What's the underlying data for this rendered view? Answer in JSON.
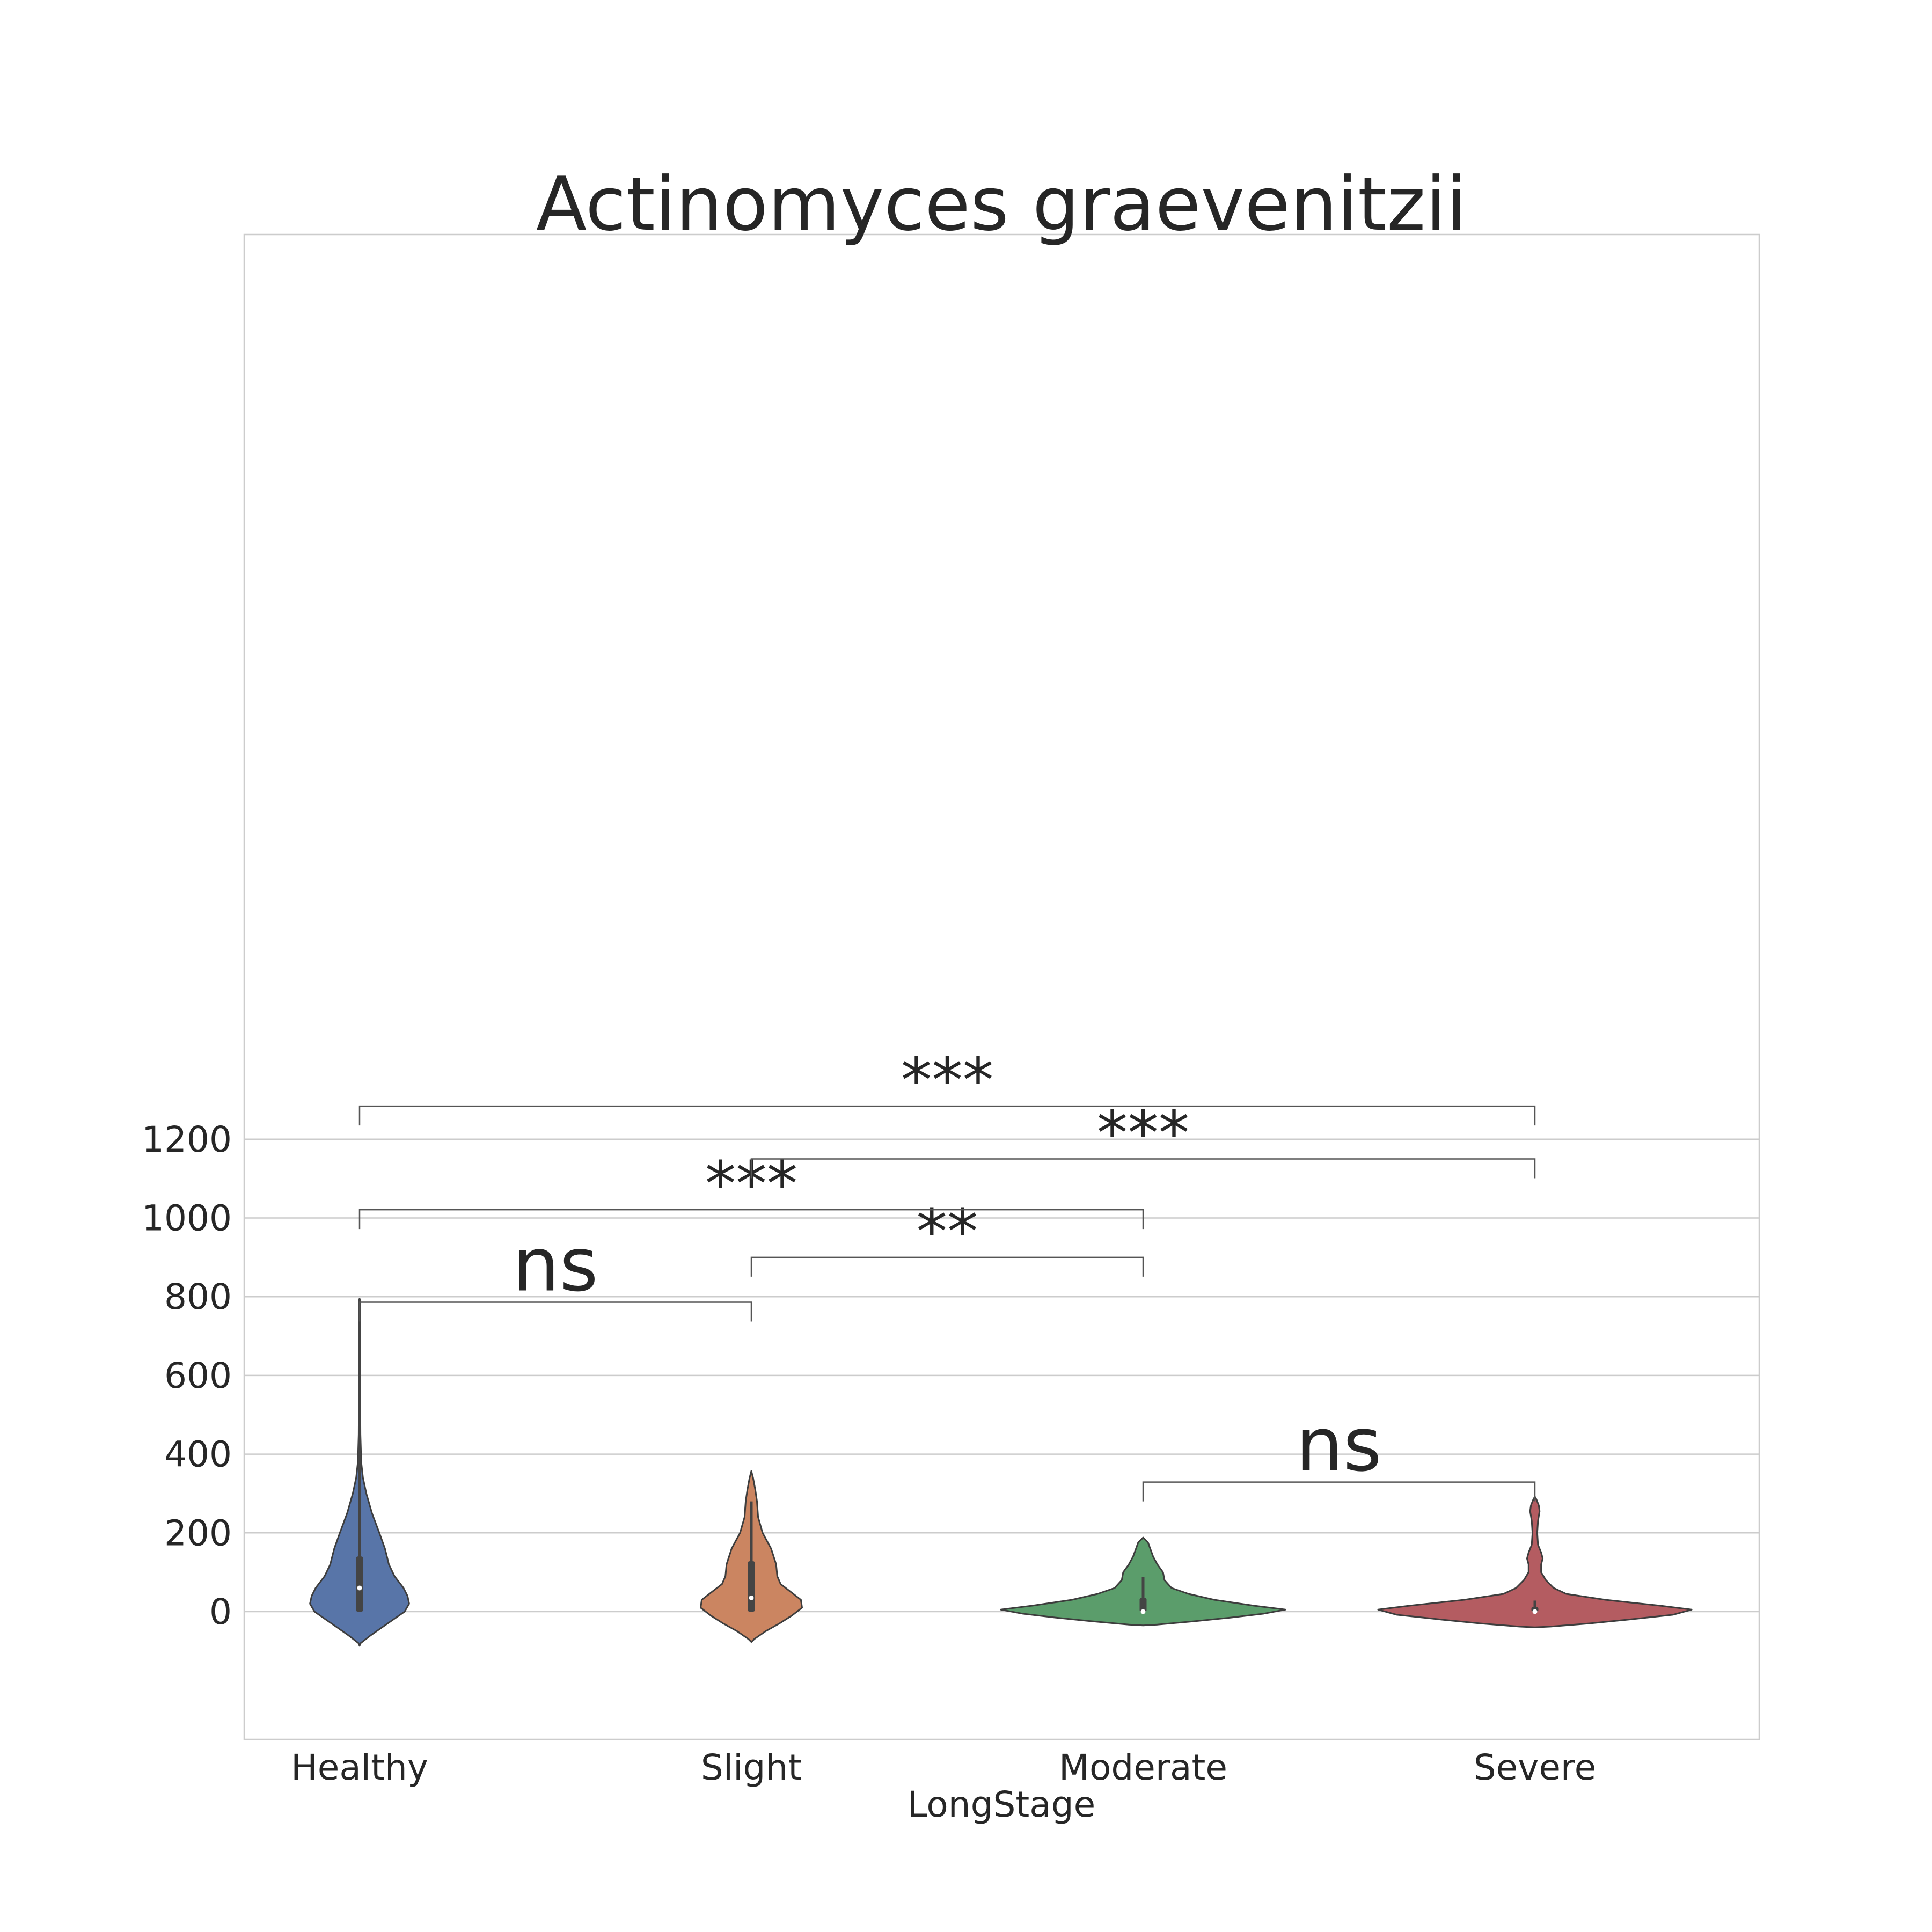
{
  "chart_data": {
    "type": "violin",
    "title": "Actinomyces graevenitzii",
    "xlabel": "LongStage",
    "ylabel": "",
    "categories": [
      "Healthy",
      "Slight",
      "Moderate",
      "Severe"
    ],
    "ylim": [
      -130,
      1400
    ],
    "yticks": [
      0,
      200,
      400,
      600,
      800,
      1000,
      1200
    ],
    "grid": true,
    "colors": [
      "#5875a8",
      "#cb8561",
      "#5b9d6b",
      "#b45c61"
    ],
    "violins": [
      {
        "category": "Healthy",
        "min": 0,
        "q1": 0,
        "median": 60,
        "q3": 140,
        "max": 795,
        "kde_min": -87,
        "kde_max": 795,
        "profile": [
          [
            -87,
            0.0
          ],
          [
            -80,
            0.02
          ],
          [
            -60,
            0.2
          ],
          [
            -40,
            0.4
          ],
          [
            -20,
            0.6
          ],
          [
            0,
            0.8
          ],
          [
            20,
            0.88
          ],
          [
            40,
            0.85
          ],
          [
            60,
            0.78
          ],
          [
            90,
            0.62
          ],
          [
            120,
            0.52
          ],
          [
            160,
            0.45
          ],
          [
            200,
            0.35
          ],
          [
            250,
            0.22
          ],
          [
            300,
            0.12
          ],
          [
            340,
            0.06
          ],
          [
            380,
            0.03
          ],
          [
            450,
            0.015
          ],
          [
            600,
            0.01
          ],
          [
            795,
            0.0
          ]
        ]
      },
      {
        "category": "Slight",
        "min": 0,
        "q1": 0,
        "median": 35,
        "q3": 128,
        "max": 280,
        "kde_min": -77,
        "kde_max": 357,
        "profile": [
          [
            -77,
            0.0
          ],
          [
            -70,
            0.05
          ],
          [
            -50,
            0.25
          ],
          [
            -30,
            0.5
          ],
          [
            -10,
            0.72
          ],
          [
            10,
            0.9
          ],
          [
            30,
            0.88
          ],
          [
            50,
            0.7
          ],
          [
            70,
            0.52
          ],
          [
            90,
            0.46
          ],
          [
            120,
            0.44
          ],
          [
            160,
            0.35
          ],
          [
            200,
            0.2
          ],
          [
            240,
            0.12
          ],
          [
            280,
            0.1
          ],
          [
            310,
            0.07
          ],
          [
            340,
            0.03
          ],
          [
            357,
            0.0
          ]
        ]
      },
      {
        "category": "Moderate",
        "min": 0,
        "q1": 0,
        "median": 0,
        "q3": 35,
        "max": 88,
        "kde_min": -35,
        "kde_max": 188,
        "profile": [
          [
            -35,
            0.0
          ],
          [
            -33,
            0.1
          ],
          [
            -25,
            0.35
          ],
          [
            -15,
            0.62
          ],
          [
            -5,
            0.85
          ],
          [
            5,
            1.0
          ],
          [
            15,
            0.78
          ],
          [
            30,
            0.5
          ],
          [
            45,
            0.32
          ],
          [
            60,
            0.2
          ],
          [
            80,
            0.15
          ],
          [
            100,
            0.14
          ],
          [
            120,
            0.1
          ],
          [
            140,
            0.07
          ],
          [
            160,
            0.05
          ],
          [
            175,
            0.035
          ],
          [
            188,
            0.0
          ]
        ]
      },
      {
        "category": "Severe",
        "min": 0,
        "q1": 0,
        "median": 0,
        "q3": 12,
        "max": 28,
        "kde_min": -40,
        "kde_max": 292,
        "profile": [
          [
            -40,
            0.0
          ],
          [
            -38,
            0.1
          ],
          [
            -30,
            0.35
          ],
          [
            -20,
            0.6
          ],
          [
            -8,
            0.88
          ],
          [
            5,
            1.0
          ],
          [
            15,
            0.8
          ],
          [
            30,
            0.45
          ],
          [
            45,
            0.2
          ],
          [
            60,
            0.12
          ],
          [
            80,
            0.07
          ],
          [
            100,
            0.04
          ],
          [
            120,
            0.04
          ],
          [
            135,
            0.05
          ],
          [
            150,
            0.04
          ],
          [
            170,
            0.02
          ],
          [
            200,
            0.015
          ],
          [
            230,
            0.02
          ],
          [
            255,
            0.03
          ],
          [
            270,
            0.025
          ],
          [
            285,
            0.01
          ],
          [
            292,
            0.0
          ]
        ]
      }
    ],
    "annotations": [
      {
        "from": "Healthy",
        "to": "Slight",
        "y": 786,
        "label": "ns"
      },
      {
        "from": "Moderate",
        "to": "Severe",
        "y": 329,
        "label": "ns"
      },
      {
        "from": "Slight",
        "to": "Moderate",
        "y": 900,
        "label": "**"
      },
      {
        "from": "Healthy",
        "to": "Moderate",
        "y": 1021,
        "label": "***"
      },
      {
        "from": "Slight",
        "to": "Severe",
        "y": 1150,
        "label": "***"
      },
      {
        "from": "Healthy",
        "to": "Severe",
        "y": 1284,
        "label": "***"
      }
    ]
  }
}
